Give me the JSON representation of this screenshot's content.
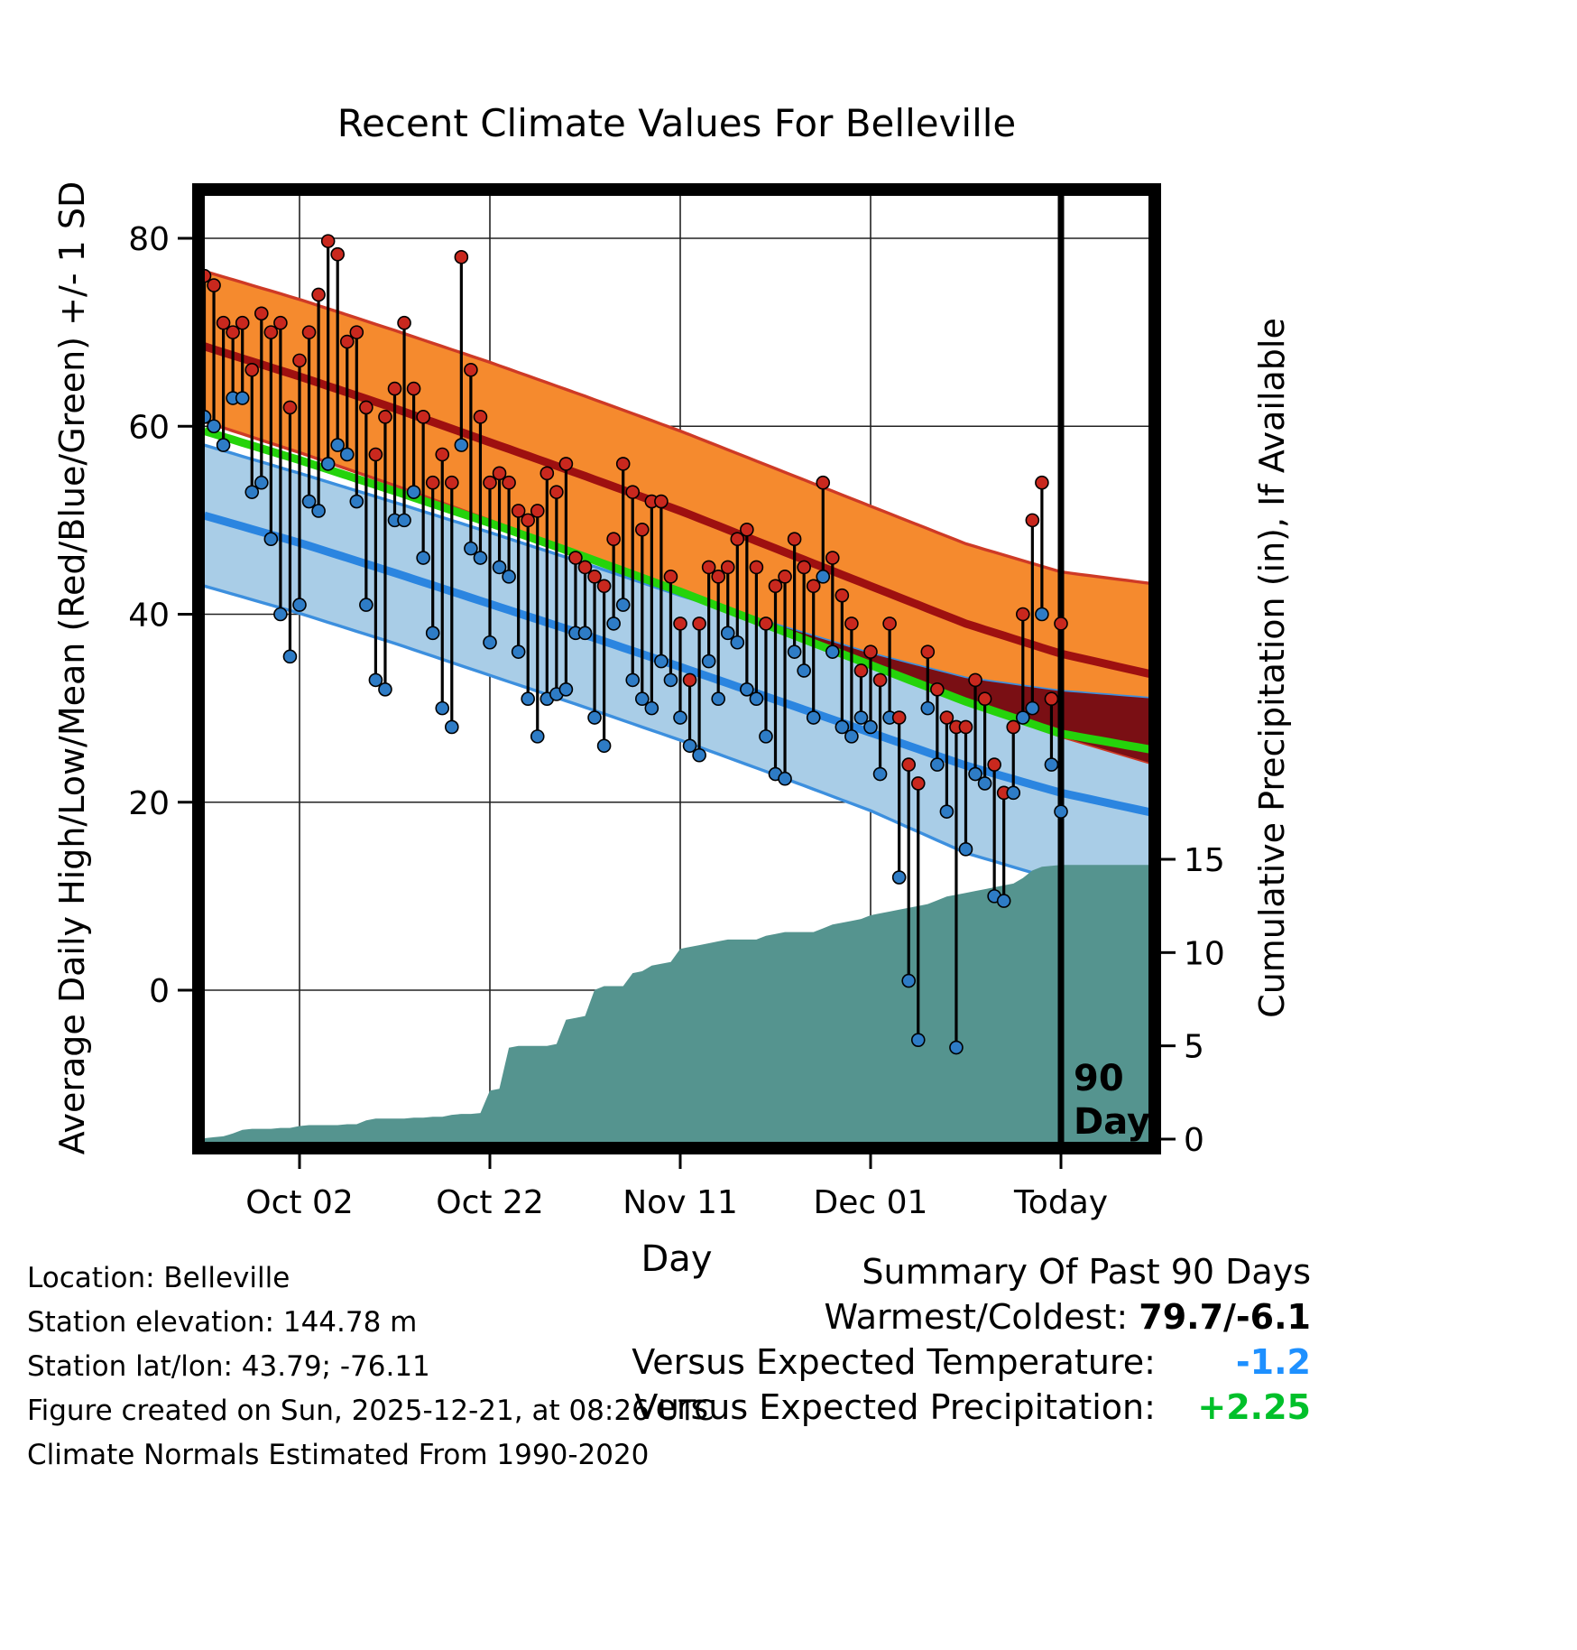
{
  "title": "Recent Climate Values For Belleville",
  "footer": {
    "location": "Location: Belleville",
    "elevation": "Station elevation: 144.78 m",
    "latlon": "Station lat/lon: 43.79; -76.11",
    "created": "Figure created on Sun, 2025-12-21, at 08:26 UTC",
    "normals": "Climate Normals Estimated From 1990-2020"
  },
  "summary": {
    "heading": "Summary Of Past 90 Days",
    "warmest_label": "Warmest/Coldest:",
    "warmest_value": "79.7/-6.1",
    "vs_temp_label": "Versus Expected Temperature:",
    "vs_temp_value": "-1.2",
    "vs_precip_label": "Versus Expected Precipitation:",
    "vs_precip_value": "+2.25"
  },
  "chart_data": {
    "type": "line",
    "title": "Recent Climate Values For Belleville",
    "xlabel": "Day",
    "ylabel_left": "Average Daily High/Low/Mean (Red/Blue/Green) +/- 1 SD",
    "ylabel_right": "Cumulative Precipitation (in), If Available",
    "x_ticks": [
      {
        "day": 10,
        "label": "Oct 02"
      },
      {
        "day": 30,
        "label": "Oct 22"
      },
      {
        "day": 50,
        "label": "Nov 11"
      },
      {
        "day": 70,
        "label": "Dec 01"
      },
      {
        "day": 90,
        "label": "Today"
      }
    ],
    "y_ticks_left": [
      0,
      20,
      40,
      60,
      80
    ],
    "y_ticks_right": [
      0,
      5,
      10,
      15
    ],
    "ylim_left": [
      -16,
      84.5
    ],
    "ylim_right": [
      0,
      15.5
    ],
    "annotation": {
      "day": 90,
      "lines": [
        "90",
        "Days"
      ]
    },
    "normals": {
      "sample_days": [
        0,
        10,
        20,
        30,
        40,
        50,
        60,
        70,
        80,
        90,
        100
      ],
      "high_upper": [
        76.5,
        73.5,
        70.2,
        66.8,
        63.2,
        59.5,
        55.5,
        51.5,
        47.5,
        44.5,
        43.2
      ],
      "high_mean": [
        68.5,
        65.3,
        61.9,
        58.3,
        54.7,
        51.0,
        47.0,
        43.0,
        39.0,
        35.8,
        33.5
      ],
      "high_lower": [
        60.5,
        57.2,
        53.7,
        50.0,
        46.3,
        42.5,
        38.6,
        34.6,
        30.6,
        27.0,
        24.0
      ],
      "mean": [
        59.5,
        56.4,
        53.1,
        49.7,
        46.1,
        42.4,
        38.5,
        34.6,
        30.7,
        27.3,
        25.5
      ],
      "low_upper": [
        58.0,
        55.0,
        51.9,
        48.7,
        45.4,
        42.0,
        38.9,
        35.8,
        33.2,
        31.8,
        31.0
      ],
      "low_mean": [
        50.5,
        47.6,
        44.4,
        41.1,
        37.8,
        34.4,
        30.9,
        27.4,
        23.9,
        21.0,
        18.8
      ],
      "low_lower": [
        43.0,
        40.1,
        36.9,
        33.5,
        30.1,
        26.6,
        22.9,
        19.1,
        14.6,
        11.6,
        10.0
      ]
    },
    "observations": {
      "highs": [
        76,
        75,
        71,
        70,
        71,
        66,
        72,
        70,
        71,
        62,
        67,
        70,
        74,
        79.7,
        78.3,
        69,
        70,
        62,
        57,
        61,
        64,
        71,
        64,
        61,
        54,
        57,
        54,
        78,
        66,
        61,
        54,
        55,
        54,
        51,
        50,
        51,
        55,
        53,
        56,
        46,
        45,
        44,
        43,
        48,
        56,
        53,
        49,
        52,
        52,
        44,
        39,
        33,
        39,
        45,
        44,
        45,
        48,
        49,
        45,
        39,
        43,
        44,
        48,
        45,
        43,
        54,
        46,
        42,
        39,
        34,
        36,
        33,
        39,
        29,
        24,
        22,
        36,
        32,
        29,
        28,
        28,
        33,
        31,
        24,
        21,
        28,
        40,
        50,
        54,
        31,
        39
      ],
      "lows": [
        61,
        60,
        58,
        63,
        63,
        53,
        54,
        48,
        40,
        35.5,
        41,
        52,
        51,
        56,
        58,
        57,
        52,
        41,
        33,
        32,
        50,
        50,
        53,
        46,
        38,
        30,
        28,
        58,
        47,
        46,
        37,
        45,
        44,
        36,
        31,
        27,
        31,
        31.5,
        32,
        38,
        38,
        29,
        26,
        39,
        41,
        33,
        31,
        30,
        35,
        33,
        29,
        26,
        25,
        35,
        31,
        38,
        37,
        32,
        31,
        27,
        23,
        22.5,
        36,
        34,
        29,
        44,
        36,
        28,
        27,
        29,
        28,
        23,
        29,
        12,
        1,
        -5.3,
        30,
        24,
        19,
        -6.1,
        15,
        23,
        22,
        10,
        9.5,
        21,
        29,
        30,
        40,
        24,
        19
      ]
    },
    "cumulative_precip": [
      0.05,
      0.1,
      0.15,
      0.3,
      0.5,
      0.55,
      0.55,
      0.55,
      0.6,
      0.6,
      0.7,
      0.75,
      0.75,
      0.75,
      0.75,
      0.8,
      0.8,
      1.0,
      1.1,
      1.1,
      1.1,
      1.1,
      1.15,
      1.15,
      1.2,
      1.2,
      1.3,
      1.35,
      1.35,
      1.4,
      2.6,
      2.7,
      4.9,
      5.0,
      5.0,
      5.0,
      5.0,
      5.1,
      6.4,
      6.5,
      6.6,
      8.0,
      8.2,
      8.2,
      8.2,
      8.9,
      9.0,
      9.3,
      9.4,
      9.5,
      10.2,
      10.3,
      10.4,
      10.5,
      10.6,
      10.7,
      10.7,
      10.7,
      10.7,
      10.9,
      11.0,
      11.1,
      11.1,
      11.1,
      11.1,
      11.3,
      11.5,
      11.6,
      11.7,
      11.8,
      12.0,
      12.1,
      12.2,
      12.3,
      12.4,
      12.5,
      12.6,
      12.8,
      13.0,
      13.1,
      13.2,
      13.3,
      13.4,
      13.5,
      13.6,
      13.7,
      14.0,
      14.4,
      14.6,
      14.65,
      14.7
    ],
    "colors": {
      "high_band": "#F58A2E",
      "band_edge_red": "#CE3A26",
      "high_mean_line": "#9E1010",
      "overlap_band": "#7A0F14",
      "low_band": "#A9CDE7",
      "band_edge_blue": "#3C8FDE",
      "low_mean_line": "#2B85E0",
      "mean_line": "#25D30B",
      "precip_fill": "#55948F",
      "obs_line": "#000000",
      "obs_high_dot": "#C9281E",
      "obs_low_dot": "#2E7CC6",
      "accent_blue": "#1E90FF",
      "accent_green": "#00C02A"
    }
  }
}
